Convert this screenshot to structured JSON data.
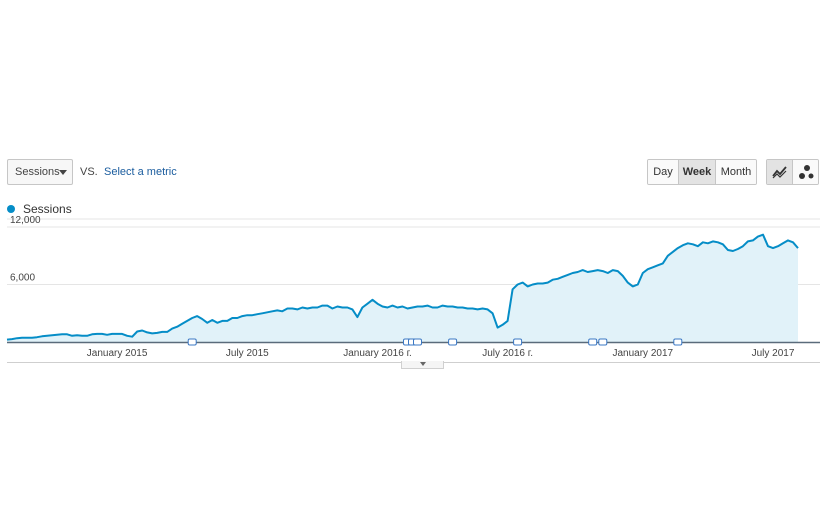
{
  "controls": {
    "metric_selector": "Sessions",
    "vs_label": "VS.",
    "select_metric": "Select a metric",
    "periods": [
      "Day",
      "Week",
      "Month"
    ],
    "active_period": "Week"
  },
  "legend": {
    "label": "Sessions",
    "color": "#058dc7"
  },
  "colors": {
    "line": "#058dc7",
    "area": "#e1f2f9",
    "grid": "#e5e5e5",
    "annotation": "#3b78c4"
  },
  "chart_data": {
    "type": "area",
    "title": "",
    "xlabel": "",
    "ylabel": "",
    "ylim": [
      0,
      12000
    ],
    "yticks": [
      "12,000",
      "6,000"
    ],
    "ytick_values": [
      12000,
      6000
    ],
    "grid": true,
    "legend": "top-left",
    "x_tick_labels": [
      {
        "label": "January 2015",
        "index": 22
      },
      {
        "label": "July 2015",
        "index": 48
      },
      {
        "label": "January 2016 г.",
        "index": 74
      },
      {
        "label": "July 2016 г.",
        "index": 100
      },
      {
        "label": "January 2017",
        "index": 127
      },
      {
        "label": "July 2017",
        "index": 153
      }
    ],
    "annotation_indices": [
      37,
      80,
      81,
      82,
      89,
      102,
      117,
      119,
      134
    ],
    "series": [
      {
        "name": "Sessions",
        "values": [
          250,
          300,
          400,
          450,
          450,
          450,
          500,
          600,
          650,
          700,
          750,
          800,
          800,
          650,
          700,
          650,
          650,
          800,
          850,
          850,
          750,
          850,
          850,
          850,
          650,
          550,
          1100,
          1200,
          1000,
          900,
          950,
          1050,
          1050,
          1400,
          1600,
          1900,
          2200,
          2500,
          2700,
          2400,
          2000,
          2300,
          2000,
          2200,
          2200,
          2500,
          2500,
          2700,
          2800,
          2800,
          2900,
          3000,
          3100,
          3200,
          3300,
          3200,
          3500,
          3500,
          3400,
          3600,
          3500,
          3600,
          3600,
          3800,
          3800,
          3500,
          3700,
          3600,
          3600,
          3400,
          2600,
          3600,
          4000,
          4400,
          4000,
          3700,
          3600,
          3800,
          3600,
          3700,
          3500,
          3600,
          3700,
          3700,
          3800,
          3600,
          3600,
          3800,
          3700,
          3700,
          3600,
          3600,
          3500,
          3500,
          3400,
          3500,
          3400,
          3000,
          1500,
          1800,
          2200,
          5500,
          6000,
          6200,
          5800,
          6000,
          6100,
          6100,
          6200,
          6500,
          6600,
          6800,
          7000,
          7200,
          7300,
          7500,
          7300,
          7400,
          7500,
          7400,
          7200,
          7500,
          7400,
          6900,
          6200,
          5800,
          6000,
          7200,
          7600,
          7800,
          8000,
          8200,
          9000,
          9400,
          9800,
          10100,
          10300,
          10200,
          10000,
          10400,
          10300,
          10500,
          10400,
          10200,
          9600,
          9500,
          9700,
          10000,
          10500,
          10600,
          11000,
          11200,
          10000,
          9800,
          10000,
          10300,
          10600,
          10400,
          9800
        ]
      }
    ]
  }
}
